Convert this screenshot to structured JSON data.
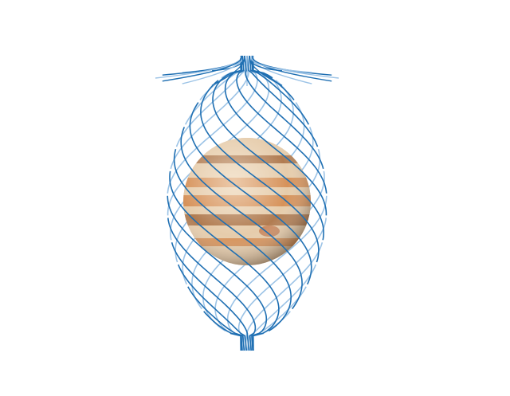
{
  "diagram": {
    "subject": "planet-jupiter",
    "orbit_count": 16,
    "colors": {
      "background": "#ffffff",
      "orbit_front": "#1f6fb2",
      "orbit_back": "#9cc3e6",
      "planet_base": "#c99a6a",
      "planet_band_dark": "#a8724a",
      "planet_band_light": "#efdcc2",
      "planet_zone_orange": "#d98f56"
    }
  }
}
